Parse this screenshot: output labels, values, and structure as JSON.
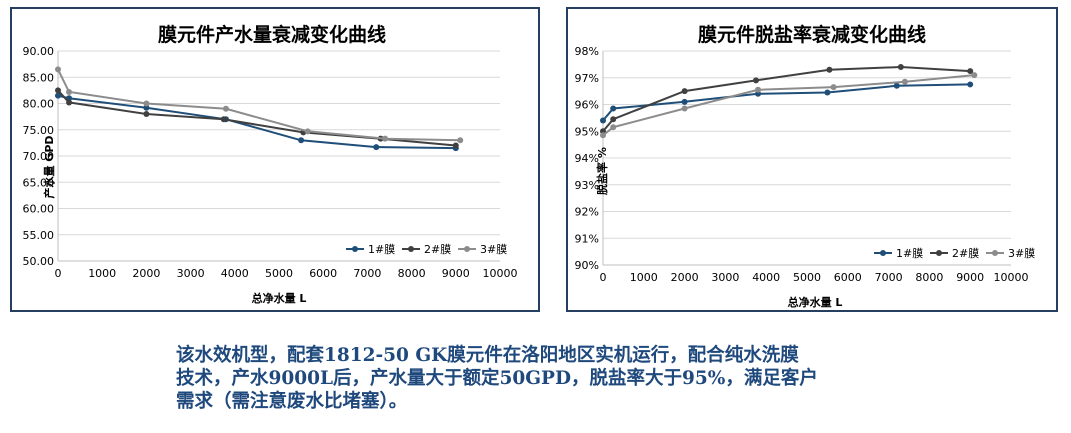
{
  "colors": {
    "series1": "#1f4e79",
    "series2": "#404040",
    "series3": "#8c8c8c",
    "frame": "#243f60",
    "caption": "#1f497d"
  },
  "chart_data": [
    {
      "type": "line",
      "title": "膜元件产水量衰减变化曲线",
      "xlabel": "总净水量 L",
      "ylabel": "产水量 GPD",
      "xlim": [
        0,
        10000
      ],
      "ylim": [
        50,
        90
      ],
      "x_ticks": [
        "0",
        "1000",
        "2000",
        "3000",
        "4000",
        "5000",
        "6000",
        "7000",
        "8000",
        "9000",
        "10000"
      ],
      "y_ticks": [
        "50.00",
        "55.00",
        "60.00",
        "65.00",
        "70.00",
        "75.00",
        "80.00",
        "85.00",
        "90.00"
      ],
      "grid": "horizontal",
      "legend": "bottom-right",
      "series": [
        {
          "name": "1#膜",
          "points": [
            [
              0,
              81.5
            ],
            [
              250,
              81.0
            ],
            [
              2000,
              79.2
            ],
            [
              3800,
              77.0
            ],
            [
              5500,
              73.0
            ],
            [
              7200,
              71.7
            ],
            [
              9000,
              71.5
            ]
          ]
        },
        {
          "name": "2#膜",
          "points": [
            [
              0,
              82.5
            ],
            [
              250,
              80.2
            ],
            [
              2000,
              78.0
            ],
            [
              3750,
              77.0
            ],
            [
              5550,
              74.5
            ],
            [
              7300,
              73.3
            ],
            [
              9000,
              72.0
            ]
          ]
        },
        {
          "name": "3#膜",
          "points": [
            [
              0,
              86.5
            ],
            [
              250,
              82.2
            ],
            [
              2000,
              80.0
            ],
            [
              3800,
              79.0
            ],
            [
              5650,
              74.7
            ],
            [
              7400,
              73.3
            ],
            [
              9100,
              73.0
            ]
          ]
        }
      ]
    },
    {
      "type": "line",
      "title": "膜元件脱盐率衰减变化曲线",
      "xlabel": "总净水量 L",
      "ylabel": "脱盐率 %",
      "xlim": [
        0,
        10000
      ],
      "ylim": [
        90,
        98
      ],
      "x_ticks": [
        "0",
        "1000",
        "2000",
        "3000",
        "4000",
        "5000",
        "6000",
        "7000",
        "8000",
        "9000",
        "10000"
      ],
      "y_ticks": [
        "90%",
        "91%",
        "92%",
        "93%",
        "94%",
        "95%",
        "96%",
        "97%",
        "98%"
      ],
      "grid": "horizontal",
      "legend": "bottom-right",
      "series": [
        {
          "name": "1#膜",
          "points": [
            [
              0,
              95.4
            ],
            [
              250,
              95.85
            ],
            [
              2000,
              96.1
            ],
            [
              3800,
              96.4
            ],
            [
              5500,
              96.45
            ],
            [
              7200,
              96.7
            ],
            [
              9000,
              96.75
            ]
          ]
        },
        {
          "name": "2#膜",
          "points": [
            [
              0,
              95.0
            ],
            [
              250,
              95.45
            ],
            [
              2000,
              96.5
            ],
            [
              3750,
              96.9
            ],
            [
              5550,
              97.3
            ],
            [
              7300,
              97.4
            ],
            [
              9000,
              97.25
            ]
          ]
        },
        {
          "name": "3#膜",
          "points": [
            [
              0,
              94.85
            ],
            [
              250,
              95.15
            ],
            [
              2000,
              95.85
            ],
            [
              3800,
              96.55
            ],
            [
              5650,
              96.65
            ],
            [
              7400,
              96.85
            ],
            [
              9100,
              97.1
            ]
          ]
        }
      ]
    }
  ],
  "caption": {
    "line1": "该水效机型，配套1812-50 GK膜元件在洛阳地区实机运行，配合纯水洗膜",
    "line2": "技术，产水9000L后，产水量大于额定50GPD，脱盐率大于95%，满足客户",
    "line3": "需求（需注意废水比堵塞）。"
  }
}
